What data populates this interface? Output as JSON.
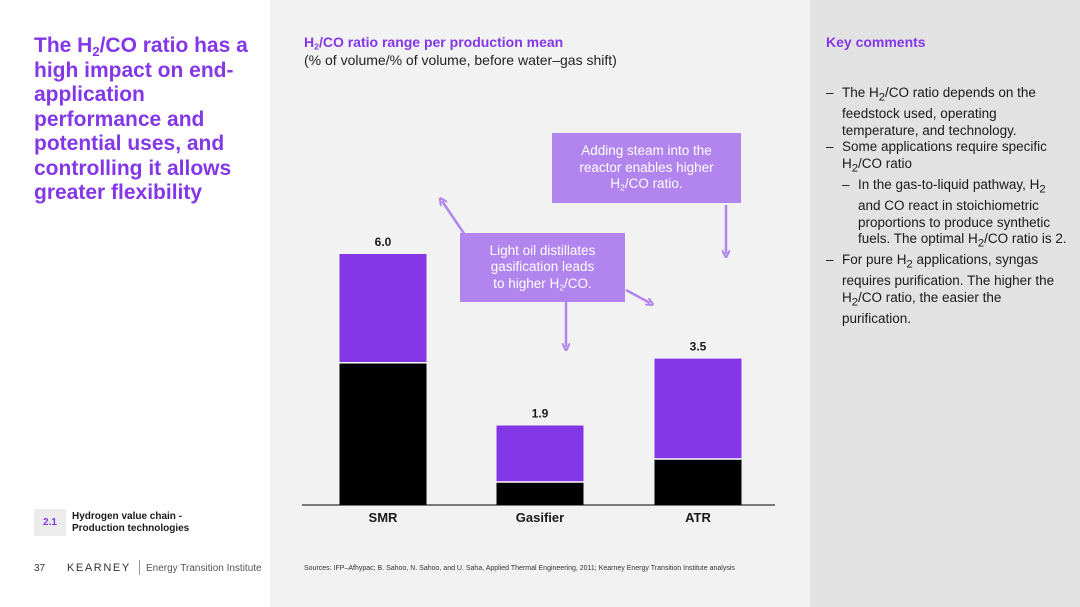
{
  "headline": {
    "pre": "The H",
    "sub": "2",
    "post": "/CO ratio has a high impact on end-application performance and potential uses, and controlling it allows greater flexibility"
  },
  "section": {
    "number": "2.1",
    "label_line1": "Hydrogen value chain -",
    "label_line2": "Production technologies"
  },
  "footer": {
    "page": "37",
    "brand": "KEARNEY",
    "institute": "Energy Transition Institute"
  },
  "chart_title": {
    "pre": "H",
    "sub": "2",
    "post": "/CO ratio range per production mean"
  },
  "chart_subtitle": "(% of volume/% of volume, before water–gas shift)",
  "chart_data": {
    "type": "bar",
    "stacked": true,
    "categories": [
      "SMR",
      "Gasifier",
      "ATR"
    ],
    "series": [
      {
        "values": [
          3.4,
          0.55,
          1.1
        ]
      },
      {
        "values": [
          2.6,
          1.35,
          2.4
        ]
      }
    ],
    "totals": [
      6.0,
      1.9,
      3.5
    ],
    "total_labels": [
      "6.0",
      "1.9",
      "3.5"
    ],
    "ylim": [
      0,
      6.5
    ],
    "colors": {
      "base": "#000000",
      "range": "#8437e6"
    },
    "grid": false,
    "legend": "none"
  },
  "callouts": {
    "steam": {
      "line1": "Adding steam into the",
      "line2": "reactor enables higher",
      "pre": "H",
      "sub": "2",
      "post": "/CO ratio."
    },
    "oil": {
      "line1": "Light oil distillates",
      "line2": "gasification leads",
      "pre": "to higher H",
      "sub": "2",
      "post": "/CO."
    }
  },
  "sources": "Sources: IFP–Afhypac; B. Sahoo, N. Sahoo, and U. Saha, Applied Thermal Engineering, 2011; Kearney Energy Transition Institute analysis",
  "comments": {
    "title": "Key comments",
    "c1": {
      "pre": "The H",
      "sub": "2",
      "post": "/CO ratio depends on the feedstock used, operating temperature, and technology."
    },
    "c2": {
      "pre": "Some applications require specific H",
      "sub": "2",
      "post": "/CO ratio"
    },
    "c3": {
      "pre": "In the gas-to-liquid pathway, H",
      "sub": "2",
      "mid": " and CO react in stoichiometric proportions to produce synthetic fuels. The optimal H",
      "sub2": "2",
      "post": "/CO ratio is 2."
    },
    "c4": {
      "pre": "For pure H",
      "sub": "2",
      "mid": " applications, syngas requires purification. The higher the H",
      "sub2": "2",
      "post": "/CO ratio, the easier the purification."
    }
  },
  "colors": {
    "accent": "#8437e6",
    "callout": "#b184ee",
    "arrow": "#b184ee"
  }
}
